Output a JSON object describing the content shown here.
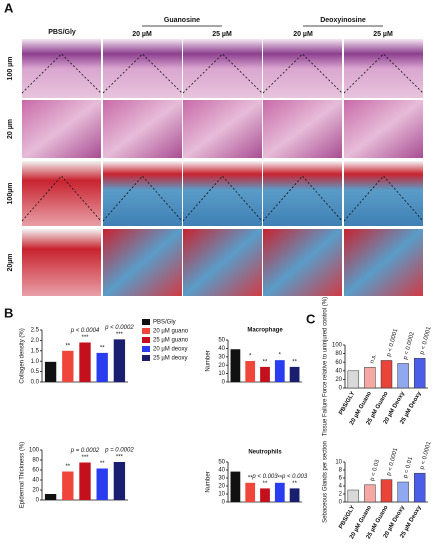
{
  "panel_labels": [
    "A",
    "B",
    "C"
  ],
  "panel_a": {
    "columns": [
      "PBS/Gly",
      "Guanosine",
      "Deoxyinosine"
    ],
    "doses": [
      "20 µM",
      "25 µM",
      "20 µM",
      "25 µM"
    ],
    "rows": [
      "100 µm",
      "20 µm",
      "100µm",
      "20µm"
    ]
  },
  "legend": {
    "labels": [
      "PBS/Gly",
      "20 µM guano",
      "25 µM guano",
      "20 µM deoxy",
      "25 µM deoxy"
    ],
    "colors": [
      "#111111",
      "#f0453a",
      "#c4101c",
      "#2a3cf0",
      "#1a1e6e"
    ]
  },
  "chart_data": [
    {
      "type": "bar",
      "ylabel": "Collagen density (%)",
      "values": [
        0.97,
        1.5,
        1.9,
        1.4,
        2.05
      ],
      "colors": [
        "#111111",
        "#f0453a",
        "#c4101c",
        "#2a3cf0",
        "#1a1e6e"
      ],
      "ylim": [
        0,
        2.5
      ],
      "yticks": [
        {
          "value": 0,
          "label": "0.0"
        },
        {
          "value": 0.5,
          "label": "0.5"
        },
        {
          "value": 1,
          "label": "1.0"
        },
        {
          "value": 1.5,
          "label": "1.5"
        },
        {
          "value": 2,
          "label": "2.0"
        },
        {
          "value": 2.5,
          "label": "2.5"
        }
      ],
      "annotations": [
        null,
        "**",
        "***",
        "**",
        "***"
      ],
      "p_labels": [
        null,
        null,
        "p < 0.0004",
        null,
        "p < 0.0002"
      ]
    },
    {
      "type": "bar",
      "title": "Macrophage",
      "ylabel": "Number",
      "values": [
        39,
        25,
        18,
        26,
        18
      ],
      "colors": [
        "#111111",
        "#f0453a",
        "#c4101c",
        "#2a3cf0",
        "#1a1e6e"
      ],
      "ylim": [
        0,
        50
      ],
      "yticks": [
        0,
        10,
        20,
        30,
        40,
        50
      ],
      "annotations": [
        null,
        "*",
        "**",
        "*",
        "**"
      ]
    },
    {
      "type": "bar",
      "ylabel": "Epidermal Thickness (%)",
      "values": [
        12,
        57,
        75,
        63,
        76
      ],
      "colors": [
        "#111111",
        "#f0453a",
        "#c4101c",
        "#2a3cf0",
        "#1a1e6e"
      ],
      "ylim": [
        0,
        100
      ],
      "yticks": [
        0,
        20,
        40,
        60,
        80,
        100
      ],
      "annotations": [
        null,
        "**",
        "***",
        "**",
        "***"
      ],
      "p_labels": [
        null,
        null,
        "p = 0.0002",
        null,
        "p = 0.0002"
      ]
    },
    {
      "type": "bar",
      "title": "Neutrophils",
      "ylabel": "Number",
      "values": [
        38,
        24,
        17,
        24,
        17
      ],
      "colors": [
        "#111111",
        "#f0453a",
        "#c4101c",
        "#2a3cf0",
        "#1a1e6e"
      ],
      "ylim": [
        0,
        50
      ],
      "yticks": [
        0,
        10,
        20,
        30,
        40,
        50
      ],
      "annotations": [
        null,
        "**",
        "**",
        "**",
        "**"
      ],
      "p_labels": [
        null,
        null,
        "p < 0.003",
        null,
        "p < 0.003"
      ]
    },
    {
      "type": "bar",
      "ylabel": "Tissue Failure Force relative to uninjured control (%)",
      "categories": [
        "PBS/GLY",
        "20 µM Guano",
        "25 µM Guano",
        "20 µM Deoxy",
        "25 µM Deoxy"
      ],
      "values": [
        40,
        48,
        64,
        57,
        69
      ],
      "colors": [
        "#d9d9d9",
        "#f4a7a3",
        "#e8443a",
        "#8fa8f0",
        "#4a5ee8"
      ],
      "ylim": [
        0,
        100
      ],
      "yticks": [
        0,
        20,
        40,
        60,
        80,
        100
      ],
      "p_labels": [
        null,
        "n.s.",
        "p < 0.0001",
        "p < 0.0002",
        "p < 0.0001"
      ]
    },
    {
      "type": "bar",
      "ylabel": "Sebaceous Glands per section",
      "categories": [
        "PBS/GLY",
        "20 µM Guano",
        "25 µM Guano",
        "20 µM Deoxy",
        "25 µM Deoxy"
      ],
      "values": [
        3,
        4.3,
        5.6,
        5.0,
        7.2
      ],
      "colors": [
        "#d9d9d9",
        "#f4a7a3",
        "#e8443a",
        "#8fa8f0",
        "#4a5ee8"
      ],
      "ylim": [
        0,
        10
      ],
      "yticks": [
        0,
        2,
        4,
        6,
        8,
        10
      ],
      "p_labels": [
        null,
        "p = 0.03",
        "p < 0.0001",
        "p = 0.01",
        "p < 0.0001"
      ]
    }
  ]
}
